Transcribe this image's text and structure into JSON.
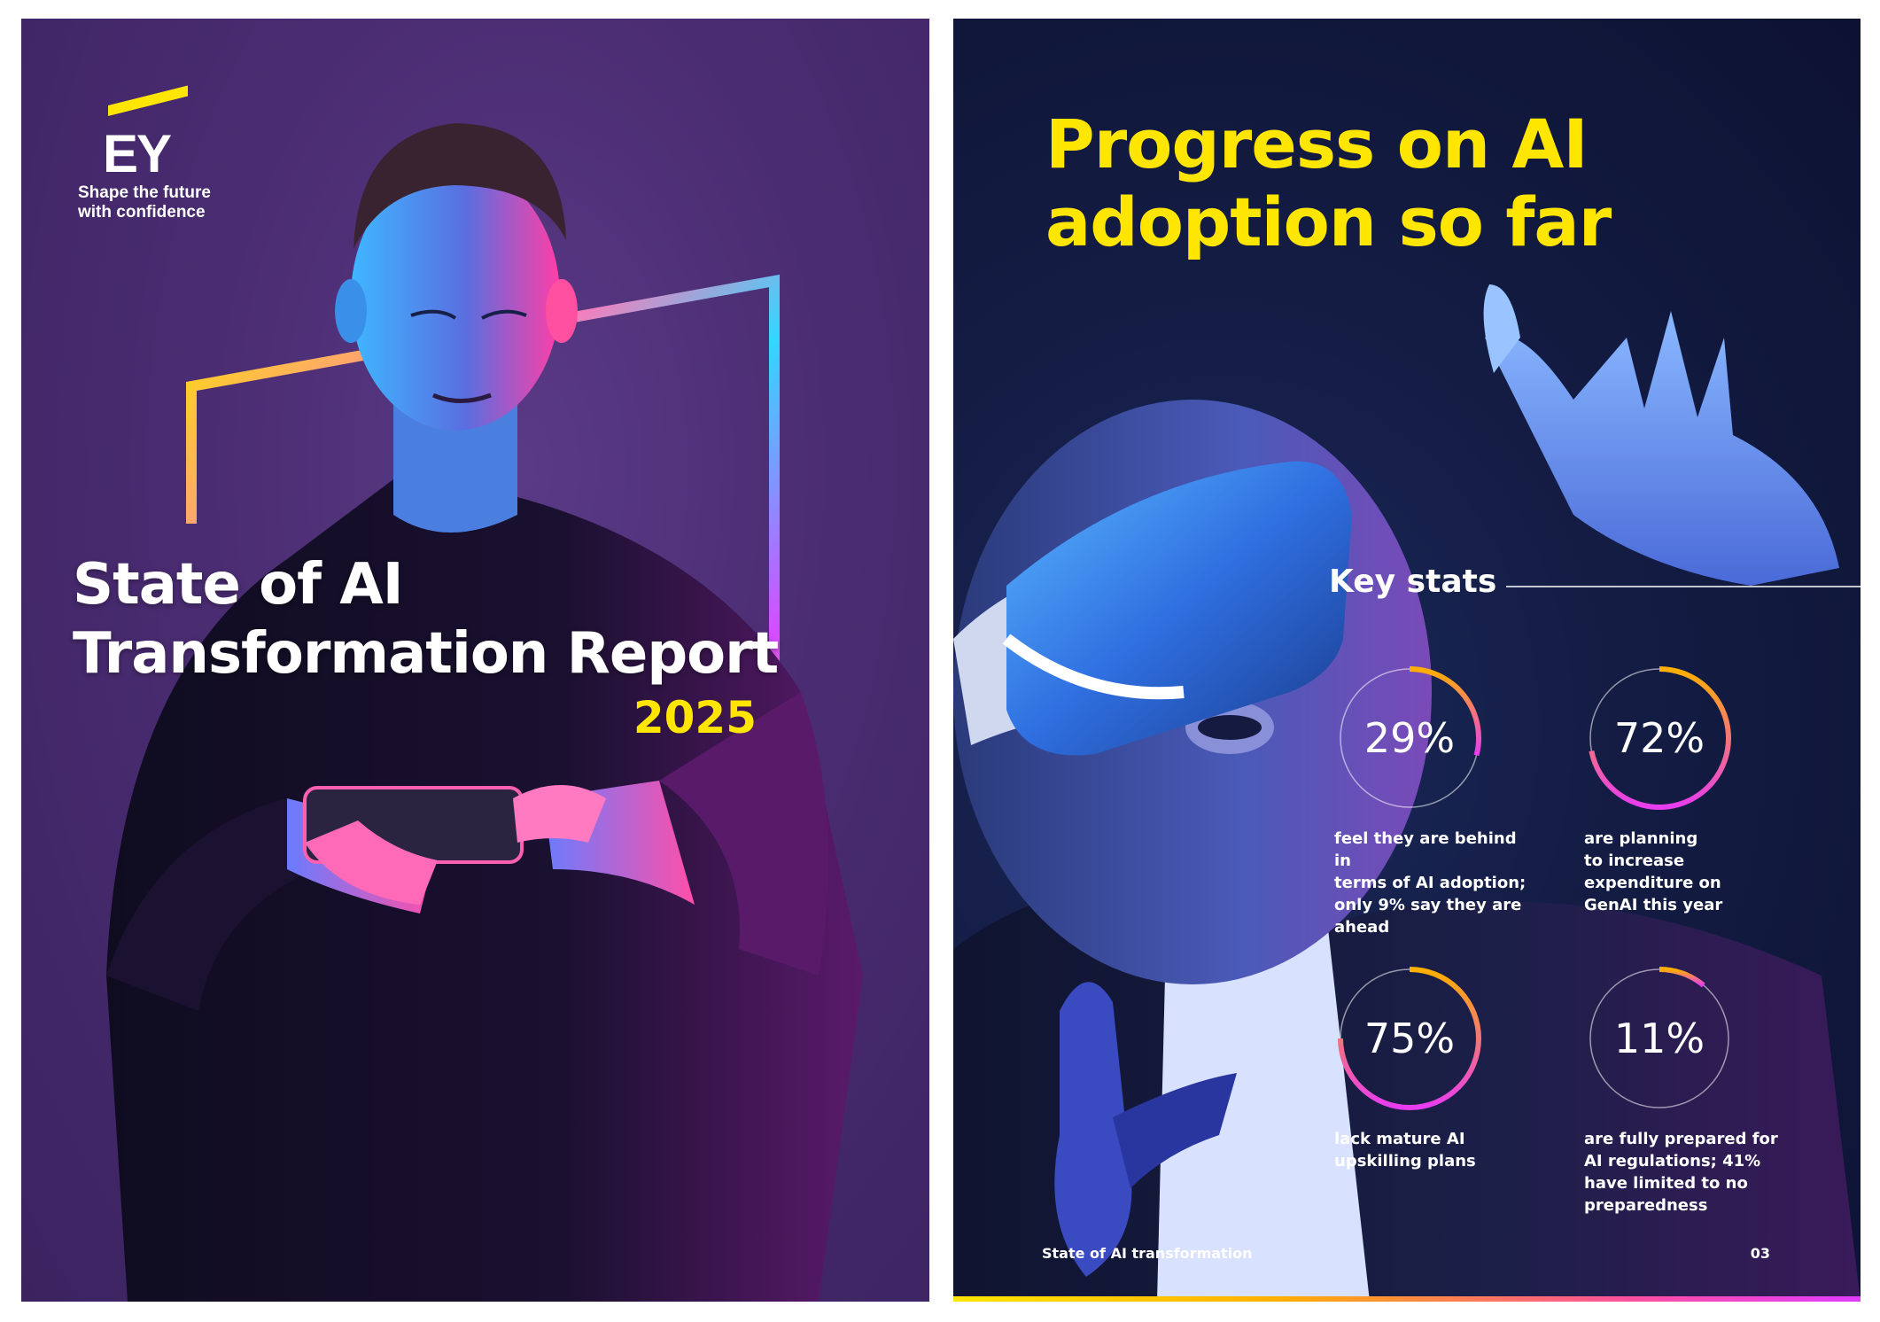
{
  "cover": {
    "brand": "EY",
    "tagline_line1": "Shape the future",
    "tagline_line2": "with confidence",
    "title_line1": "State of AI",
    "title_line2": "Transformation Report",
    "year": "2025"
  },
  "spread": {
    "title_line1": "Progress on AI",
    "title_line2": "adoption so far",
    "key_stats_label": "Key stats",
    "stats": [
      {
        "value": "29%",
        "fraction": 0.29,
        "desc": [
          "feel they are behind in",
          "terms of AI adoption;",
          "only 9% say they are",
          "ahead"
        ]
      },
      {
        "value": "72%",
        "fraction": 0.72,
        "desc": [
          "are planning",
          "to increase",
          "expenditure on",
          "GenAI this year"
        ]
      },
      {
        "value": "75%",
        "fraction": 0.75,
        "desc": [
          "lack mature AI",
          "upskilling plans"
        ]
      },
      {
        "value": "11%",
        "fraction": 0.11,
        "desc": [
          "are fully prepared for",
          "AI regulations; 41%",
          "have limited to no",
          "preparedness"
        ]
      }
    ],
    "footer_left": "State of AI transformation",
    "page_number": "03"
  },
  "colors": {
    "ey_yellow": "#ffe600",
    "ring_orange": "#ffb000",
    "ring_magenta": "#e83cf0",
    "ring_track": "#ffffff"
  }
}
